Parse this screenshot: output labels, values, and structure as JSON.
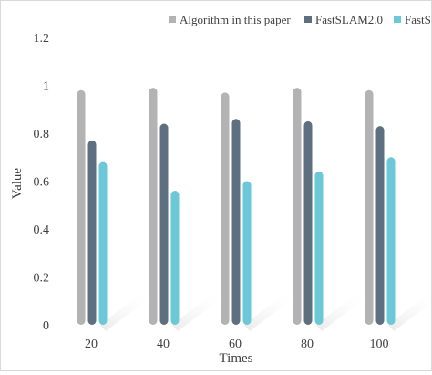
{
  "chart_data": {
    "type": "bar",
    "title": "",
    "xlabel": "Times",
    "ylabel": "Value",
    "categories": [
      "20",
      "40",
      "60",
      "80",
      "100"
    ],
    "ylim": [
      0,
      1.2
    ],
    "yticks": [
      "0",
      "0.2",
      "0.4",
      "0.6",
      "0.8",
      "1",
      "1.2"
    ],
    "grid": false,
    "legend_position": "top-right",
    "series": [
      {
        "name": "Algorithm in this paper",
        "color": "#b3b3b3",
        "values": [
          0.98,
          0.99,
          0.97,
          0.99,
          0.98
        ]
      },
      {
        "name": "FastSLAM2.0",
        "color": "#5e6f80",
        "values": [
          0.77,
          0.84,
          0.86,
          0.85,
          0.83
        ]
      },
      {
        "name": "FastS",
        "color": "#6cc7d6",
        "values": [
          0.68,
          0.56,
          0.6,
          0.64,
          0.7
        ]
      }
    ]
  }
}
